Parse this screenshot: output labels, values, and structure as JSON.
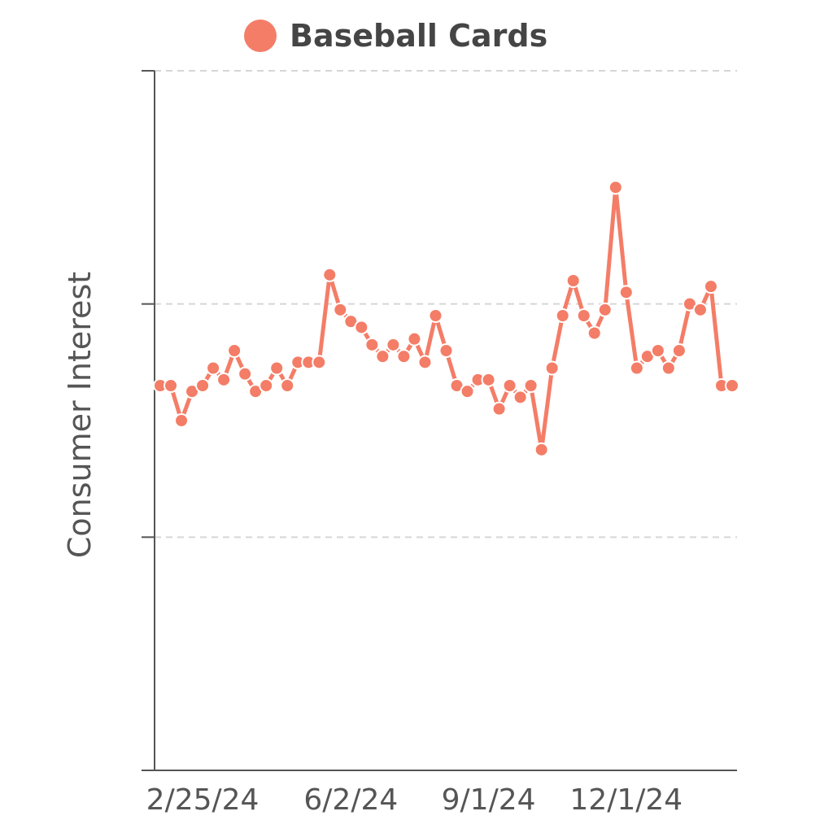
{
  "chart_data": {
    "type": "line",
    "title": "",
    "ylabel": "Consumer Interest",
    "xlabel": "",
    "color": "#f47d67",
    "legend": {
      "position": "top",
      "entries": [
        "Baseball Cards"
      ]
    },
    "ylim": [
      0,
      60
    ],
    "y_ticks": [
      0,
      20,
      40,
      60
    ],
    "y_tick_labels_visible": false,
    "grid": "horizontal-dashed",
    "x_tick_labels": [
      {
        "label": "2/25/24",
        "index": 4
      },
      {
        "label": "6/2/24",
        "index": 18
      },
      {
        "label": "9/1/24",
        "index": 31
      },
      {
        "label": "12/1/24",
        "index": 44
      }
    ],
    "series": [
      {
        "name": "Baseball Cards",
        "values": [
          33,
          33,
          30,
          32.5,
          33,
          34.5,
          33.5,
          36,
          34,
          32.5,
          33,
          34.5,
          33,
          35,
          35,
          35,
          42.5,
          39.5,
          38.5,
          38,
          36.5,
          35.5,
          36.5,
          35.5,
          37,
          35,
          39,
          36,
          33,
          32.5,
          33.5,
          33.5,
          31,
          33,
          32,
          33,
          27.5,
          34.5,
          39,
          42,
          39,
          37.5,
          39.5,
          50,
          41,
          34.5,
          35.5,
          36,
          34.5,
          36,
          40,
          39.5,
          41.5,
          33,
          33
        ]
      }
    ]
  }
}
